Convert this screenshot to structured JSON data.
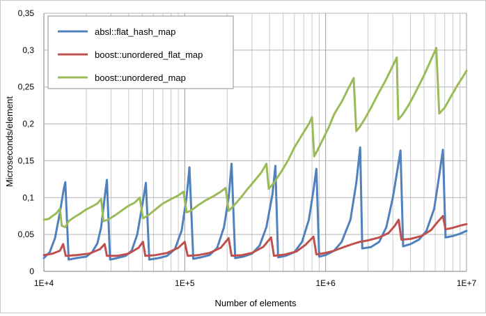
{
  "chart_data": {
    "type": "line",
    "title": "",
    "xlabel": "Number of elements",
    "ylabel": "Microseconds/element",
    "xscale": "log",
    "xlim": [
      10000,
      10000000
    ],
    "ylim": [
      0,
      0.35
    ],
    "grid": true,
    "legend_position": "top-left",
    "x_tick_labels": [
      "1E+4",
      "1E+5",
      "1E+6",
      "1E+7"
    ],
    "y_tick_labels": [
      "0",
      "0,05",
      "0,1",
      "0,15",
      "0,2",
      "0,25",
      "0,3",
      "0,35"
    ],
    "series": [
      {
        "name": "absl::flat_hash_map",
        "color": "#4f81bd",
        "points": [
          [
            10000,
            0.018
          ],
          [
            11000,
            0.026
          ],
          [
            12000,
            0.045
          ],
          [
            13000,
            0.08
          ],
          [
            13800,
            0.11
          ],
          [
            14200,
            0.121
          ],
          [
            15000,
            0.016
          ],
          [
            17000,
            0.018
          ],
          [
            20000,
            0.02
          ],
          [
            22000,
            0.026
          ],
          [
            24000,
            0.038
          ],
          [
            25500,
            0.06
          ],
          [
            27000,
            0.1
          ],
          [
            28000,
            0.124
          ],
          [
            29500,
            0.016
          ],
          [
            33000,
            0.018
          ],
          [
            38000,
            0.021
          ],
          [
            42000,
            0.028
          ],
          [
            46000,
            0.05
          ],
          [
            50000,
            0.09
          ],
          [
            53000,
            0.12
          ],
          [
            56000,
            0.016
          ],
          [
            65000,
            0.018
          ],
          [
            75000,
            0.021
          ],
          [
            85000,
            0.03
          ],
          [
            95000,
            0.055
          ],
          [
            103000,
            0.1
          ],
          [
            108000,
            0.141
          ],
          [
            115000,
            0.017
          ],
          [
            130000,
            0.019
          ],
          [
            150000,
            0.022
          ],
          [
            170000,
            0.032
          ],
          [
            190000,
            0.06
          ],
          [
            205000,
            0.1
          ],
          [
            215000,
            0.146
          ],
          [
            228000,
            0.018
          ],
          [
            260000,
            0.02
          ],
          [
            300000,
            0.024
          ],
          [
            340000,
            0.035
          ],
          [
            380000,
            0.06
          ],
          [
            420000,
            0.105
          ],
          [
            440000,
            0.143
          ],
          [
            460000,
            0.019
          ],
          [
            520000,
            0.021
          ],
          [
            600000,
            0.026
          ],
          [
            680000,
            0.04
          ],
          [
            760000,
            0.07
          ],
          [
            820000,
            0.11
          ],
          [
            860000,
            0.139
          ],
          [
            900000,
            0.02
          ],
          [
            1000000,
            0.022
          ],
          [
            1150000,
            0.028
          ],
          [
            1300000,
            0.04
          ],
          [
            1500000,
            0.07
          ],
          [
            1650000,
            0.12
          ],
          [
            1760000,
            0.168
          ],
          [
            1820000,
            0.031
          ],
          [
            2100000,
            0.033
          ],
          [
            2400000,
            0.04
          ],
          [
            2700000,
            0.06
          ],
          [
            3000000,
            0.1
          ],
          [
            3250000,
            0.14
          ],
          [
            3400000,
            0.164
          ],
          [
            3550000,
            0.034
          ],
          [
            4000000,
            0.037
          ],
          [
            4600000,
            0.043
          ],
          [
            5200000,
            0.055
          ],
          [
            5900000,
            0.085
          ],
          [
            6400000,
            0.13
          ],
          [
            6800000,
            0.165
          ],
          [
            7100000,
            0.046
          ],
          [
            8000000,
            0.048
          ],
          [
            9000000,
            0.051
          ],
          [
            10000000,
            0.055
          ]
        ]
      },
      {
        "name": "boost::unordered_flat_map",
        "color": "#c0504d",
        "points": [
          [
            10000,
            0.022
          ],
          [
            11500,
            0.024
          ],
          [
            13000,
            0.028
          ],
          [
            13700,
            0.037
          ],
          [
            14300,
            0.021
          ],
          [
            17000,
            0.022
          ],
          [
            21000,
            0.024
          ],
          [
            25000,
            0.03
          ],
          [
            27000,
            0.037
          ],
          [
            28000,
            0.021
          ],
          [
            33000,
            0.021
          ],
          [
            40000,
            0.024
          ],
          [
            47000,
            0.032
          ],
          [
            50500,
            0.04
          ],
          [
            52500,
            0.021
          ],
          [
            62000,
            0.022
          ],
          [
            75000,
            0.025
          ],
          [
            90000,
            0.032
          ],
          [
            100000,
            0.04
          ],
          [
            105000,
            0.021
          ],
          [
            125000,
            0.022
          ],
          [
            150000,
            0.025
          ],
          [
            180000,
            0.032
          ],
          [
            205000,
            0.045
          ],
          [
            215000,
            0.021
          ],
          [
            255000,
            0.022
          ],
          [
            300000,
            0.025
          ],
          [
            360000,
            0.033
          ],
          [
            410000,
            0.046
          ],
          [
            430000,
            0.021
          ],
          [
            520000,
            0.023
          ],
          [
            620000,
            0.027
          ],
          [
            720000,
            0.036
          ],
          [
            820000,
            0.047
          ],
          [
            860000,
            0.023
          ],
          [
            1000000,
            0.025
          ],
          [
            1150000,
            0.028
          ],
          [
            1350000,
            0.033
          ],
          [
            1550000,
            0.037
          ],
          [
            1750000,
            0.04
          ],
          [
            2000000,
            0.042
          ],
          [
            2400000,
            0.046
          ],
          [
            2800000,
            0.052
          ],
          [
            3100000,
            0.062
          ],
          [
            3300000,
            0.07
          ],
          [
            3450000,
            0.043
          ],
          [
            4000000,
            0.044
          ],
          [
            4800000,
            0.048
          ],
          [
            5600000,
            0.056
          ],
          [
            6300000,
            0.068
          ],
          [
            6800000,
            0.075
          ],
          [
            7100000,
            0.057
          ],
          [
            8000000,
            0.059
          ],
          [
            9000000,
            0.062
          ],
          [
            10000000,
            0.064
          ]
        ]
      },
      {
        "name": "boost::unordered_map",
        "color": "#9bbb59",
        "points": [
          [
            10000,
            0.07
          ],
          [
            10800,
            0.071
          ],
          [
            11500,
            0.075
          ],
          [
            12300,
            0.079
          ],
          [
            13000,
            0.085
          ],
          [
            13400,
            0.062
          ],
          [
            14200,
            0.06
          ],
          [
            15000,
            0.068
          ],
          [
            16000,
            0.072
          ],
          [
            18000,
            0.078
          ],
          [
            20000,
            0.084
          ],
          [
            22000,
            0.088
          ],
          [
            24000,
            0.092
          ],
          [
            25500,
            0.098
          ],
          [
            26500,
            0.068
          ],
          [
            28500,
            0.07
          ],
          [
            32000,
            0.076
          ],
          [
            36000,
            0.083
          ],
          [
            40000,
            0.089
          ],
          [
            44000,
            0.093
          ],
          [
            48000,
            0.1
          ],
          [
            50500,
            0.072
          ],
          [
            55000,
            0.076
          ],
          [
            62000,
            0.084
          ],
          [
            70000,
            0.092
          ],
          [
            80000,
            0.098
          ],
          [
            90000,
            0.103
          ],
          [
            98000,
            0.108
          ],
          [
            103000,
            0.08
          ],
          [
            110000,
            0.082
          ],
          [
            125000,
            0.09
          ],
          [
            140000,
            0.096
          ],
          [
            160000,
            0.102
          ],
          [
            180000,
            0.108
          ],
          [
            195000,
            0.113
          ],
          [
            205000,
            0.082
          ],
          [
            225000,
            0.09
          ],
          [
            250000,
            0.1
          ],
          [
            280000,
            0.112
          ],
          [
            310000,
            0.122
          ],
          [
            350000,
            0.134
          ],
          [
            380000,
            0.146
          ],
          [
            395000,
            0.112
          ],
          [
            430000,
            0.12
          ],
          [
            480000,
            0.134
          ],
          [
            540000,
            0.15
          ],
          [
            600000,
            0.168
          ],
          [
            680000,
            0.185
          ],
          [
            760000,
            0.2
          ],
          [
            800000,
            0.209
          ],
          [
            830000,
            0.156
          ],
          [
            880000,
            0.165
          ],
          [
            950000,
            0.178
          ],
          [
            1050000,
            0.195
          ],
          [
            1150000,
            0.213
          ],
          [
            1300000,
            0.23
          ],
          [
            1450000,
            0.248
          ],
          [
            1580000,
            0.262
          ],
          [
            1650000,
            0.19
          ],
          [
            1750000,
            0.196
          ],
          [
            1900000,
            0.207
          ],
          [
            2100000,
            0.222
          ],
          [
            2350000,
            0.24
          ],
          [
            2650000,
            0.258
          ],
          [
            2950000,
            0.276
          ],
          [
            3200000,
            0.29
          ],
          [
            3280000,
            0.206
          ],
          [
            3500000,
            0.212
          ],
          [
            3900000,
            0.226
          ],
          [
            4400000,
            0.245
          ],
          [
            5000000,
            0.266
          ],
          [
            5600000,
            0.287
          ],
          [
            6100000,
            0.303
          ],
          [
            6400000,
            0.214
          ],
          [
            7000000,
            0.222
          ],
          [
            7800000,
            0.238
          ],
          [
            8600000,
            0.252
          ],
          [
            9300000,
            0.262
          ],
          [
            10000000,
            0.272
          ]
        ]
      }
    ]
  }
}
